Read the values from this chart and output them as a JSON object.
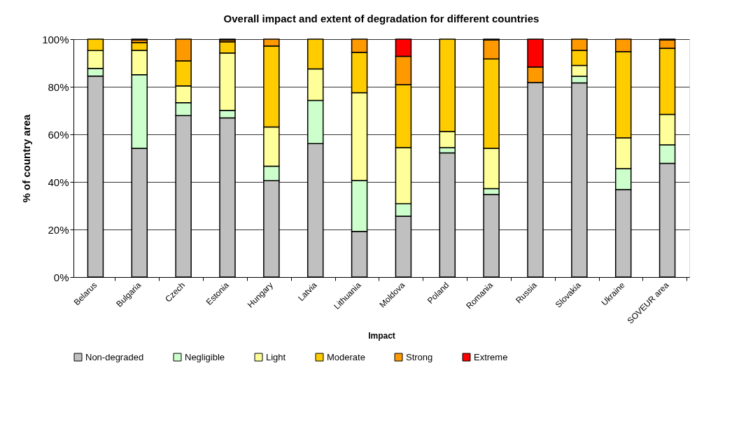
{
  "chart_data": {
    "type": "bar",
    "stacked": true,
    "title": "Overall impact and extent of degradation for different countries",
    "xlabel": "Impact",
    "ylabel": "% of country area",
    "categories": [
      "Belarus",
      "Bulgaria",
      "Czech",
      "Estonia",
      "Hungary",
      "Latvia",
      "Lithuania",
      "Moldova",
      "Poland",
      "Romania",
      "Russia",
      "Slovakia",
      "Ukraine",
      "SOVEUR area"
    ],
    "series": [
      {
        "name": "Non-degraded",
        "color": "#c0c0c0",
        "values": [
          84.5,
          54.1,
          67.9,
          66.9,
          40.5,
          56.1,
          19.2,
          25.6,
          52.2,
          34.7,
          81.8,
          81.6,
          36.8,
          47.8
        ]
      },
      {
        "name": "Negligible",
        "color": "#ccffcc",
        "values": [
          3.2,
          31.0,
          5.4,
          3.2,
          6.1,
          18.2,
          21.4,
          5.2,
          2.2,
          2.5,
          null,
          2.8,
          8.8,
          7.8
        ]
      },
      {
        "name": "Light",
        "color": "#ffff99",
        "values": [
          7.5,
          10.2,
          7.1,
          24.1,
          16.5,
          13.2,
          36.9,
          23.6,
          6.8,
          16.9,
          null,
          4.6,
          12.9,
          12.8
        ]
      },
      {
        "name": "Moderate",
        "color": "#ffcc00",
        "values": [
          4.8,
          3.3,
          10.5,
          4.7,
          34.0,
          12.5,
          17.0,
          26.5,
          38.8,
          37.6,
          null,
          6.3,
          36.3,
          27.8
        ]
      },
      {
        "name": "Strong",
        "color": "#ff9900",
        "values": [
          null,
          1.1,
          9.1,
          0.7,
          2.9,
          null,
          5.5,
          11.9,
          null,
          8.0,
          6.5,
          4.7,
          5.2,
          3.5
        ]
      },
      {
        "name": "Extreme",
        "color": "#ff0000",
        "values": [
          null,
          0.3,
          null,
          0.4,
          null,
          null,
          null,
          7.2,
          null,
          0.3,
          11.7,
          null,
          null,
          0.3
        ]
      }
    ],
    "ylim": [
      0,
      100
    ],
    "yticks": [
      {
        "value": 0,
        "label": "0%"
      },
      {
        "value": 20,
        "label": "20%"
      },
      {
        "value": 40,
        "label": "40%"
      },
      {
        "value": 60,
        "label": "60%"
      },
      {
        "value": 80,
        "label": "80%"
      },
      {
        "value": 100,
        "label": "100%"
      }
    ],
    "grid": "y",
    "legend": "bottom"
  }
}
